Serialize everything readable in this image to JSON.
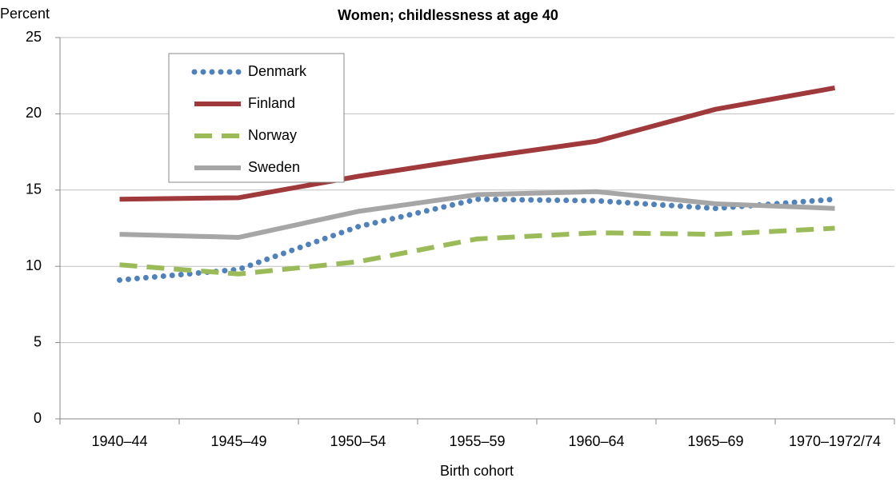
{
  "chart_data": {
    "type": "line",
    "title": "Women; childlessness at age 40",
    "y_axis_label": "Percent",
    "x_axis_label": "Birth cohort",
    "categories": [
      "1940–44",
      "1945–49",
      "1950–54",
      "1955–59",
      "1960–64",
      "1965–69",
      "1970–1972/74"
    ],
    "series": [
      {
        "name": "Denmark",
        "color": "#4f81bd",
        "dash": "dotted",
        "values": [
          9.1,
          9.8,
          12.6,
          14.4,
          14.3,
          13.8,
          14.4
        ]
      },
      {
        "name": "Finland",
        "color": "#a0393b",
        "dash": "solid",
        "values": [
          14.4,
          14.5,
          15.9,
          17.1,
          18.2,
          20.3,
          21.7
        ]
      },
      {
        "name": "Norway",
        "color": "#9bbb59",
        "dash": "dashed",
        "values": [
          10.1,
          9.5,
          10.3,
          11.8,
          12.2,
          12.1,
          12.5
        ]
      },
      {
        "name": "Sweden",
        "color": "#a6a6a6",
        "dash": "solid",
        "values": [
          12.1,
          11.9,
          13.6,
          14.7,
          14.9,
          14.1,
          13.8
        ]
      }
    ],
    "ylim": [
      0,
      25
    ],
    "yticks": [
      0,
      5,
      10,
      15,
      20,
      25
    ],
    "grid": true,
    "legend": "upper left"
  }
}
